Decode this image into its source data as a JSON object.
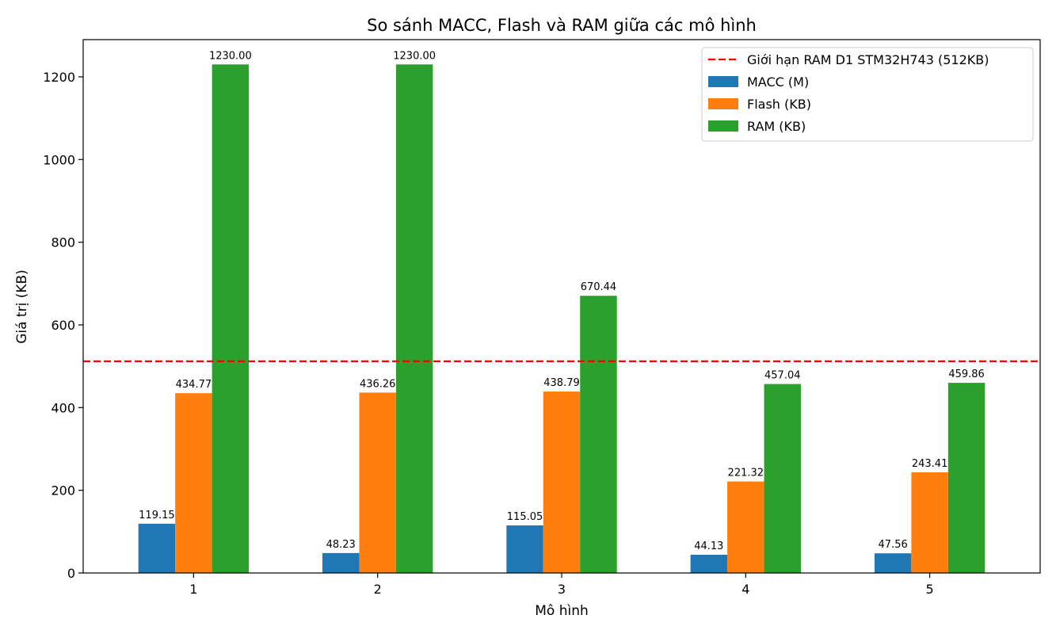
{
  "chart_data": {
    "type": "bar",
    "title": "So sánh MACC, Flash và RAM giữa các mô hình",
    "xlabel": "Mô hình",
    "ylabel": "Giá trị (KB)",
    "categories": [
      "1",
      "2",
      "3",
      "4",
      "5"
    ],
    "ylim": [
      0,
      1290
    ],
    "yticks": [
      0,
      200,
      400,
      600,
      800,
      1000,
      1200
    ],
    "grid": false,
    "legend_position": "top-right",
    "series": [
      {
        "name": "MACC (M)",
        "color": "#1f77b4",
        "values": [
          119.15,
          48.23,
          115.05,
          44.13,
          47.56
        ],
        "labels": [
          "119.15",
          "48.23",
          "115.05",
          "44.13",
          "47.56"
        ]
      },
      {
        "name": "Flash (KB)",
        "color": "#ff7f0e",
        "values": [
          434.77,
          436.26,
          438.79,
          221.32,
          243.41
        ],
        "labels": [
          "434.77",
          "436.26",
          "438.79",
          "221.32",
          "243.41"
        ]
      },
      {
        "name": "RAM (KB)",
        "color": "#2ca02c",
        "values": [
          1230.0,
          1230.0,
          670.44,
          457.04,
          459.86
        ],
        "labels": [
          "1230.00",
          "1230.00",
          "670.44",
          "457.04",
          "459.86"
        ]
      }
    ],
    "reference_line": {
      "name": "Giới hạn RAM D1 STM32H743 (512KB)",
      "value": 512,
      "color": "#ff0000",
      "style": "dashed"
    }
  }
}
